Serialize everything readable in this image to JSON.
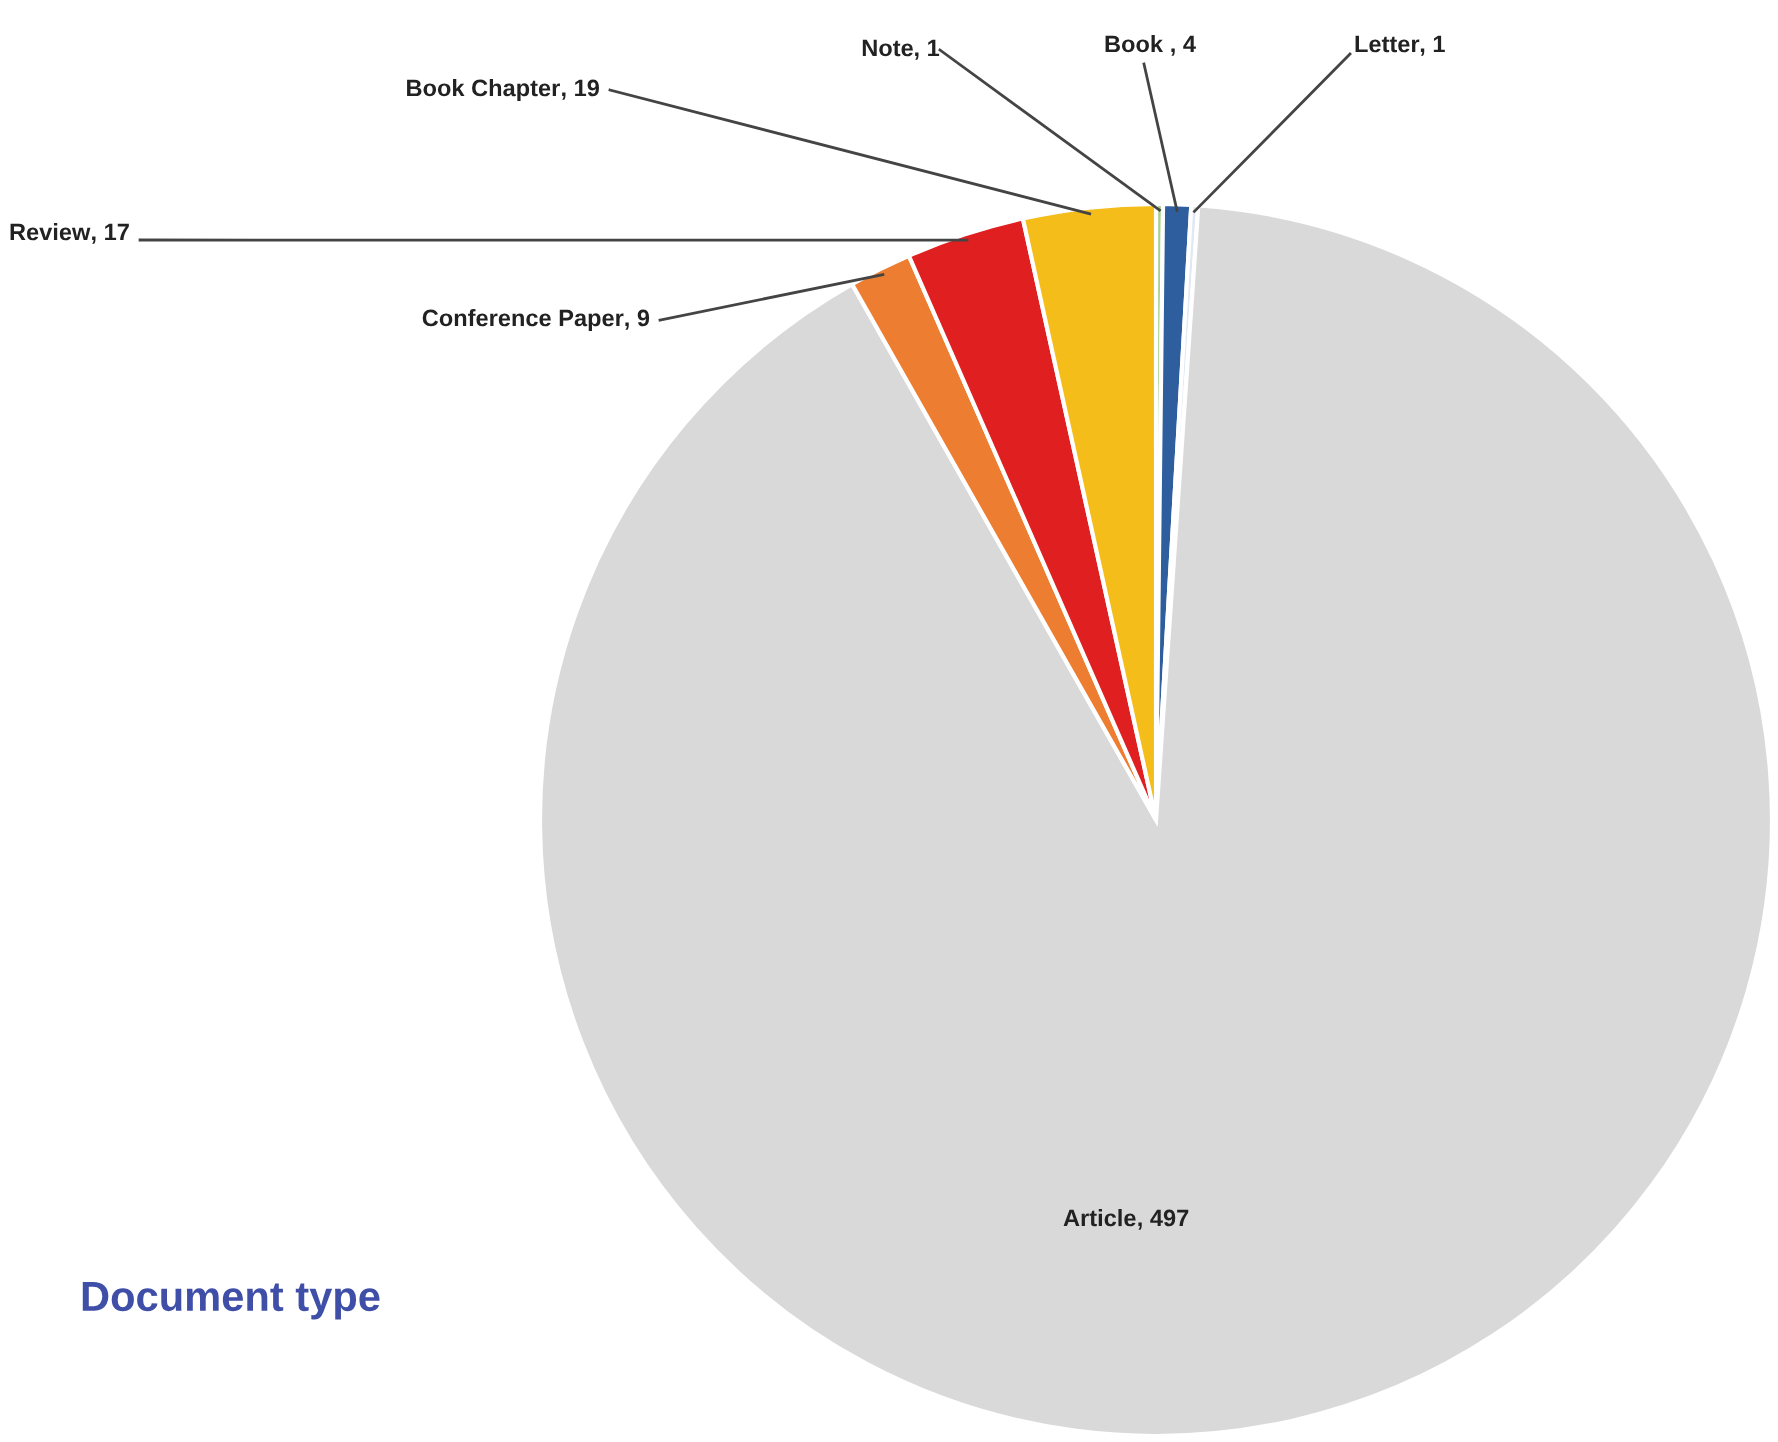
{
  "chart_data": {
    "type": "pie",
    "categories": [
      "Note",
      "Book ",
      "Letter",
      "Article",
      "Conference Paper",
      "Review",
      "Book Chapter"
    ],
    "values": [
      1,
      4,
      1,
      497,
      9,
      17,
      19
    ],
    "colors": [
      "#a9d18e",
      "#2e5e9e",
      "#dfe8f5",
      "#d9d9d9",
      "#ed7d31",
      "#e02020",
      "#f5bd1a"
    ],
    "value_labels": [
      ", 1",
      ", 4",
      ", 1",
      ", 497",
      ", 9",
      ", 17",
      ", 19"
    ],
    "annotations": [
      "Document type"
    ]
  }
}
